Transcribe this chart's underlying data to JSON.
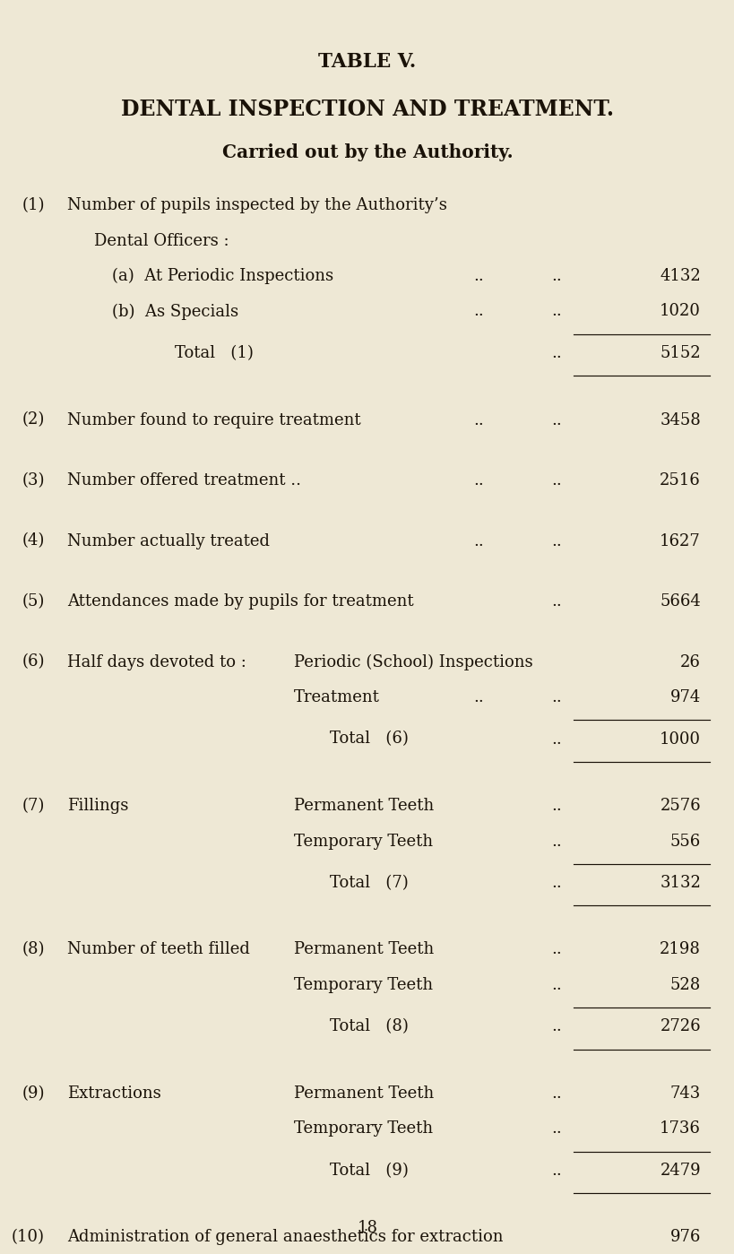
{
  "bg_color": "#eee8d5",
  "text_color": "#1a1208",
  "title1": "TABLE V.",
  "title2": "DENTAL INSPECTION AND TREATMENT.",
  "title3": "Carried out by the Authority.",
  "page_number": "18",
  "font_size": 13.0,
  "title1_fs": 15.5,
  "title2_fs": 17.0,
  "title3_fs": 14.5,
  "rows": [
    {
      "num": "(1)",
      "col1": "Number of pupils inspected by the Authority’s",
      "col2": "",
      "dots1": "",
      "dots2": "",
      "value": "",
      "line_after": false,
      "extra_before": 0.0
    },
    {
      "num": "",
      "col1": "Dental Officers :",
      "col2": "",
      "dots1": "",
      "dots2": "",
      "value": "",
      "line_after": false,
      "extra_before": 0.0,
      "indent1": 0.3
    },
    {
      "num": "",
      "col1": "(a)  At Periodic Inspections",
      "col2": "",
      "dots1": "..",
      "dots2": "..",
      "value": "4132",
      "line_after": false,
      "extra_before": 0.0,
      "indent1": 0.5
    },
    {
      "num": "",
      "col1": "(b)  As Specials",
      "col2": "",
      "dots1": "..",
      "dots2": "..",
      "value": "1020",
      "line_after": true,
      "extra_before": 0.0,
      "indent1": 0.5
    },
    {
      "num": "",
      "col1": "Total   (1)",
      "col2": "",
      "dots1": "",
      "dots2": "..",
      "value": "5152",
      "line_after": true,
      "extra_before": 0.0,
      "indent1": 1.2
    },
    {
      "num": "(2)",
      "col1": "Number found to require treatment",
      "col2": "",
      "dots1": "..",
      "dots2": "..",
      "value": "3458",
      "line_after": false,
      "extra_before": 0.28
    },
    {
      "num": "(3)",
      "col1": "Number offered treatment ..",
      "col2": "",
      "dots1": "..",
      "dots2": "..",
      "value": "2516",
      "line_after": false,
      "extra_before": 0.28
    },
    {
      "num": "(4)",
      "col1": "Number actually treated",
      "col2": "",
      "dots1": "..",
      "dots2": "..",
      "value": "1627",
      "line_after": false,
      "extra_before": 0.28
    },
    {
      "num": "(5)",
      "col1": "Attendances made by pupils for treatment",
      "col2": "",
      "dots1": "",
      "dots2": "..",
      "value": "5664",
      "line_after": false,
      "extra_before": 0.28
    },
    {
      "num": "(6)",
      "col1": "Half days devoted to :",
      "col2": "Periodic (School) Inspections",
      "dots1": "",
      "dots2": "",
      "value": "26",
      "line_after": false,
      "extra_before": 0.28
    },
    {
      "num": "",
      "col1": "",
      "col2": "Treatment",
      "dots1": "..",
      "dots2": "..",
      "value": "974",
      "line_after": true,
      "extra_before": 0.0
    },
    {
      "num": "",
      "col1": "",
      "col2": "Total   (6)",
      "dots1": "",
      "dots2": "..",
      "value": "1000",
      "line_after": true,
      "extra_before": 0.0,
      "indent2": 0.4
    },
    {
      "num": "(7)",
      "col1": "Fillings",
      "col2": "Permanent Teeth",
      "dots1": "",
      "dots2": "..",
      "value": "2576",
      "line_after": false,
      "extra_before": 0.28
    },
    {
      "num": "",
      "col1": "",
      "col2": "Temporary Teeth",
      "dots1": "",
      "dots2": "..",
      "value": "556",
      "line_after": true,
      "extra_before": 0.0
    },
    {
      "num": "",
      "col1": "",
      "col2": "Total   (7)",
      "dots1": "",
      "dots2": "..",
      "value": "3132",
      "line_after": true,
      "extra_before": 0.0,
      "indent2": 0.4
    },
    {
      "num": "(8)",
      "col1": "Number of teeth filled",
      "col2": "Permanent Teeth",
      "dots1": "",
      "dots2": "..",
      "value": "2198",
      "line_after": false,
      "extra_before": 0.28
    },
    {
      "num": "",
      "col1": "",
      "col2": "Temporary Teeth",
      "dots1": "",
      "dots2": "..",
      "value": "528",
      "line_after": true,
      "extra_before": 0.0
    },
    {
      "num": "",
      "col1": "",
      "col2": "Total   (8)",
      "dots1": "",
      "dots2": "..",
      "value": "2726",
      "line_after": true,
      "extra_before": 0.0,
      "indent2": 0.4
    },
    {
      "num": "(9)",
      "col1": "Extractions",
      "col2": "Permanent Teeth",
      "dots1": "",
      "dots2": "..",
      "value": "743",
      "line_after": false,
      "extra_before": 0.28
    },
    {
      "num": "",
      "col1": "",
      "col2": "Temporary Teeth",
      "dots1": "",
      "dots2": "..",
      "value": "1736",
      "line_after": true,
      "extra_before": 0.0
    },
    {
      "num": "",
      "col1": "",
      "col2": "Total   (9)",
      "dots1": "",
      "dots2": "..",
      "value": "2479",
      "line_after": true,
      "extra_before": 0.0,
      "indent2": 0.4
    },
    {
      "num": "(10)",
      "col1": "Administration of general anaesthetics for extraction",
      "col2": "",
      "dots1": "",
      "dots2": "",
      "value": "976",
      "line_after": false,
      "extra_before": 0.28
    }
  ]
}
